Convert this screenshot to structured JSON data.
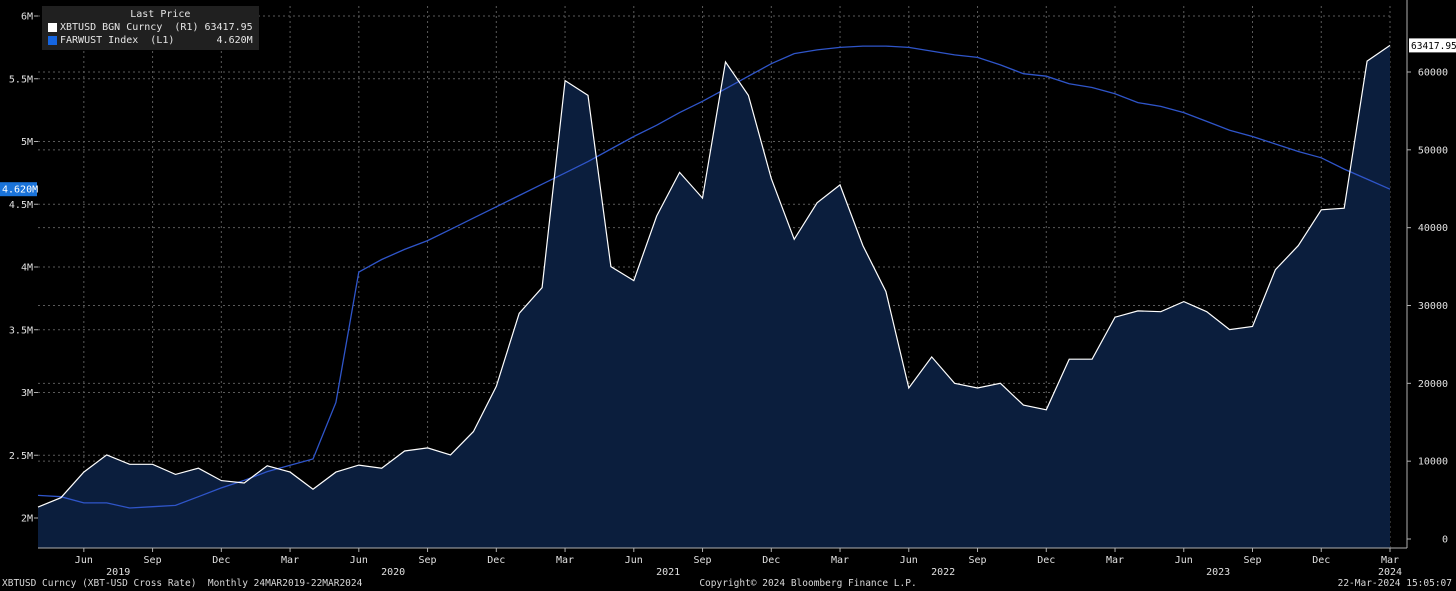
{
  "legend": {
    "header": "Last Price",
    "series1": {
      "label": "XBTUSD BGN Curncy  (R1)",
      "value": "63417.95",
      "color": "#ffffff"
    },
    "series2": {
      "label": "FARWUST Index  (L1)",
      "value": "4.620M",
      "color": "#1565e0"
    }
  },
  "footer": {
    "left": "XBTUSD Curncy (XBT-USD Cross Rate)  Monthly 24MAR2019-22MAR2024",
    "center": "Copyright© 2024 Bloomberg Finance L.P.",
    "right": "22-Mar-2024 15:05:07"
  },
  "chart_data": {
    "type": "line",
    "colors": {
      "background": "#000000",
      "area_fill": "#0b1e3d",
      "price_line": "#ffffff",
      "index_line": "#2f55c9",
      "grid": "#5a5a5a",
      "left_label_bg": "#1a73d9",
      "right_label_bg": "#ffffff"
    },
    "grid": true,
    "x_ticks": [
      "Jun",
      "Sep",
      "Dec",
      "Mar",
      "Jun",
      "Sep",
      "Dec",
      "Mar",
      "Jun",
      "Sep",
      "Dec",
      "Mar",
      "Jun",
      "Sep",
      "Dec",
      "Mar",
      "Jun",
      "Sep",
      "Dec",
      "Mar"
    ],
    "years": [
      "2019",
      "2020",
      "2021",
      "2022",
      "2023",
      "2024"
    ],
    "left_axis": {
      "ticks": [
        "6M",
        "5.5M",
        "5M",
        "4.5M",
        "4M",
        "3.5M",
        "3M",
        "2.5M",
        "2M"
      ],
      "last_label": "4.620M"
    },
    "right_axis": {
      "ticks": [
        "60000",
        "50000",
        "40000",
        "30000",
        "20000",
        "10000",
        "0"
      ],
      "last_label": "63417.95"
    },
    "series": [
      {
        "name": "XBTUSD BGN Curncy",
        "axis": "right",
        "style": "area",
        "values": [
          4100,
          5300,
          8600,
          10800,
          9600,
          9600,
          8300,
          9100,
          7500,
          7200,
          9400,
          8600,
          6400,
          8600,
          9500,
          9100,
          11300,
          11700,
          10800,
          13800,
          19600,
          29000,
          32300,
          58900,
          57000,
          35000,
          33200,
          41500,
          47100,
          43800,
          61300,
          57000,
          46300,
          38500,
          43200,
          45500,
          37700,
          31800,
          19400,
          23400,
          20000,
          19400,
          20000,
          17200,
          16600,
          23100,
          23100,
          28500,
          29300,
          29200,
          30500,
          29200,
          26900,
          27300,
          34600,
          37700,
          42300,
          42500,
          61400,
          63418
        ]
      },
      {
        "name": "FARWUST Index",
        "axis": "left",
        "style": "line",
        "values": [
          2.18,
          2.17,
          2.12,
          2.12,
          2.08,
          2.09,
          2.1,
          2.17,
          2.24,
          2.3,
          2.37,
          2.42,
          2.47,
          2.92,
          3.96,
          4.06,
          4.14,
          4.21,
          4.3,
          4.39,
          4.48,
          4.57,
          4.66,
          4.75,
          4.84,
          4.94,
          5.04,
          5.13,
          5.23,
          5.32,
          5.42,
          5.52,
          5.62,
          5.7,
          5.73,
          5.75,
          5.76,
          5.76,
          5.75,
          5.72,
          5.69,
          5.67,
          5.61,
          5.54,
          5.52,
          5.46,
          5.43,
          5.38,
          5.31,
          5.28,
          5.23,
          5.16,
          5.09,
          5.04,
          4.98,
          4.92,
          4.87,
          4.78,
          4.7,
          4.62
        ]
      }
    ]
  }
}
